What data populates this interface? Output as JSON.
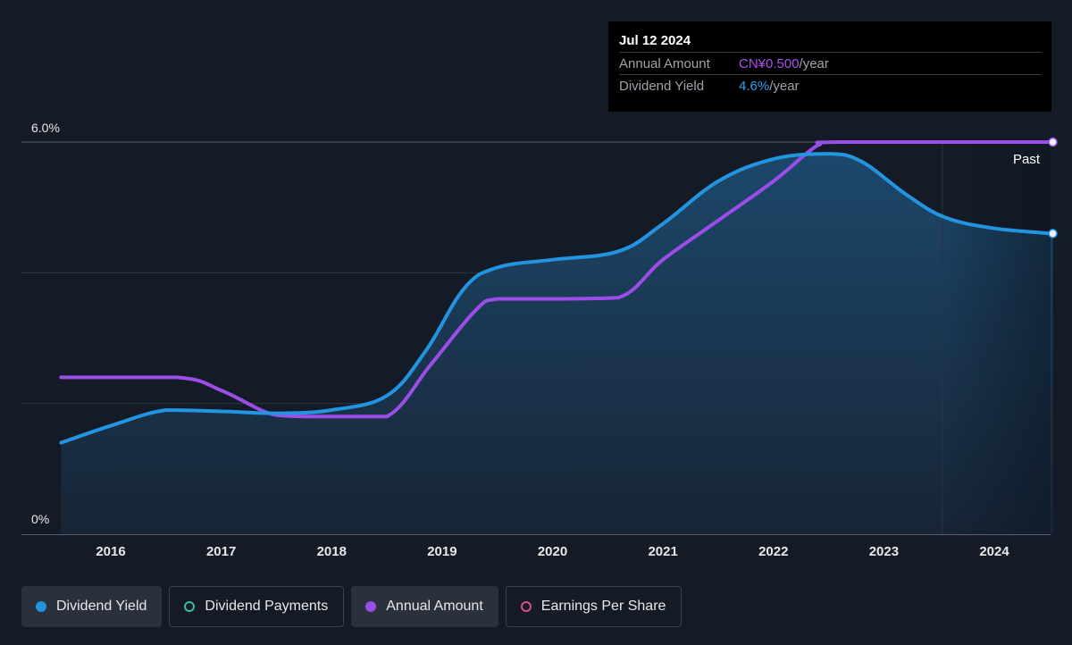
{
  "chart_data": {
    "type": "line",
    "x_ticks": [
      "2016",
      "2017",
      "2018",
      "2019",
      "2020",
      "2021",
      "2022",
      "2023",
      "2024"
    ],
    "y_ticks": [
      "6.0%",
      "0%"
    ],
    "ylim": [
      0,
      6.0
    ],
    "y_unit": "%",
    "xlim": [
      2015.4,
      2024.53
    ],
    "grid": true,
    "past_marker_label": "Past",
    "series": [
      {
        "name": "Dividend Yield",
        "color": "#2394df",
        "filled": true,
        "points": [
          [
            2015.55,
            1.4
          ],
          [
            2016.0,
            1.66
          ],
          [
            2016.5,
            1.9
          ],
          [
            2017.0,
            1.88
          ],
          [
            2017.5,
            1.85
          ],
          [
            2018.0,
            1.9
          ],
          [
            2018.5,
            2.12
          ],
          [
            2018.85,
            2.8
          ],
          [
            2019.2,
            3.76
          ],
          [
            2019.5,
            4.08
          ],
          [
            2020.0,
            4.2
          ],
          [
            2020.6,
            4.33
          ],
          [
            2021.0,
            4.75
          ],
          [
            2021.5,
            5.4
          ],
          [
            2022.0,
            5.74
          ],
          [
            2022.5,
            5.82
          ],
          [
            2022.8,
            5.7
          ],
          [
            2023.2,
            5.2
          ],
          [
            2023.55,
            4.85
          ],
          [
            2024.0,
            4.68
          ],
          [
            2024.53,
            4.6
          ]
        ]
      },
      {
        "name": "Annual Amount",
        "color": "#9b4de8",
        "filled": false,
        "points": [
          [
            2015.55,
            2.4
          ],
          [
            2016.6,
            2.4
          ],
          [
            2017.0,
            2.2
          ],
          [
            2017.4,
            1.87
          ],
          [
            2017.6,
            1.81
          ],
          [
            2018.0,
            1.8
          ],
          [
            2018.5,
            1.8
          ],
          [
            2018.9,
            2.6
          ],
          [
            2019.3,
            3.42
          ],
          [
            2019.5,
            3.6
          ],
          [
            2020.0,
            3.6
          ],
          [
            2020.6,
            3.62
          ],
          [
            2021.0,
            4.2
          ],
          [
            2021.5,
            4.8
          ],
          [
            2022.0,
            5.4
          ],
          [
            2022.4,
            5.95
          ],
          [
            2022.6,
            6.0
          ],
          [
            2024.53,
            6.0
          ]
        ]
      }
    ]
  },
  "tooltip": {
    "date": "Jul 12 2024",
    "rows": [
      {
        "label": "Annual Amount",
        "value": "CN¥0.500",
        "unit": "/year",
        "color": "#b04ef0"
      },
      {
        "label": "Dividend Yield",
        "value": "4.6%",
        "unit": "/year",
        "color": "#2ea4f0"
      }
    ]
  },
  "legend": [
    {
      "label": "Dividend Yield",
      "color": "#2394df",
      "filled": true,
      "active": true
    },
    {
      "label": "Dividend Payments",
      "color": "#3fb8a8",
      "filled": false,
      "active": false
    },
    {
      "label": "Annual Amount",
      "color": "#9b4de8",
      "filled": true,
      "active": true
    },
    {
      "label": "Earnings Per Share",
      "color": "#d84f8a",
      "filled": false,
      "active": false
    }
  ]
}
